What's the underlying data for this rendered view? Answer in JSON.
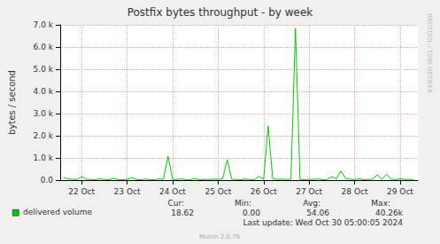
{
  "chart_data": {
    "type": "line",
    "title": "Postfix bytes throughput - by week",
    "y_label": "bytes / second",
    "x": [
      21.6,
      21.7,
      21.8,
      21.9,
      22.0,
      22.1,
      22.2,
      22.3,
      22.4,
      22.5,
      22.6,
      22.7,
      22.8,
      22.9,
      23.0,
      23.1,
      23.2,
      23.3,
      23.4,
      23.5,
      23.6,
      23.7,
      23.8,
      23.9,
      24.0,
      24.1,
      24.2,
      24.3,
      24.4,
      24.5,
      24.6,
      24.7,
      24.8,
      24.9,
      25.0,
      25.1,
      25.2,
      25.3,
      25.4,
      25.5,
      25.6,
      25.7,
      25.8,
      25.9,
      26.0,
      26.1,
      26.2,
      26.3,
      26.4,
      26.5,
      26.6,
      26.7,
      26.8,
      26.9,
      27.0,
      27.1,
      27.2,
      27.3,
      27.4,
      27.5,
      27.6,
      27.7,
      27.8,
      27.9,
      28.0,
      28.1,
      28.2,
      28.3,
      28.4,
      28.5,
      28.6,
      28.7,
      28.8,
      28.9,
      29.0,
      29.1,
      29.2,
      29.3
    ],
    "series": [
      {
        "name": "delivered volume",
        "color": "#00cc00",
        "values": [
          120,
          60,
          40,
          30,
          150,
          50,
          30,
          20,
          60,
          30,
          20,
          80,
          30,
          20,
          40,
          110,
          30,
          20,
          50,
          30,
          20,
          60,
          40,
          1080,
          40,
          30,
          60,
          20,
          30,
          70,
          20,
          40,
          30,
          50,
          30,
          60,
          920,
          40,
          30,
          20,
          50,
          30,
          20,
          160,
          40,
          2440,
          60,
          30,
          50,
          30,
          40,
          6850,
          30,
          20,
          40,
          30,
          60,
          20,
          30,
          150,
          60,
          420,
          80,
          40,
          30,
          60,
          20,
          30,
          40,
          250,
          30,
          280,
          40,
          30,
          60,
          30,
          40,
          20
        ]
      }
    ],
    "xlim": [
      21.53,
      29.39
    ],
    "xticks": [
      {
        "value": 22,
        "label": "22 Oct"
      },
      {
        "value": 23,
        "label": "23 Oct"
      },
      {
        "value": 24,
        "label": "24 Oct"
      },
      {
        "value": 25,
        "label": "25 Oct"
      },
      {
        "value": 26,
        "label": "26 Oct"
      },
      {
        "value": 27,
        "label": "27 Oct"
      },
      {
        "value": 28,
        "label": "28 Oct"
      },
      {
        "value": 29,
        "label": "29 Oct"
      }
    ],
    "ylim": [
      0,
      7000
    ],
    "yticks": [
      {
        "value": 0,
        "label": "0.0"
      },
      {
        "value": 1000,
        "label": "1.0 k"
      },
      {
        "value": 2000,
        "label": "2.0 k"
      },
      {
        "value": 3000,
        "label": "3.0 k"
      },
      {
        "value": 4000,
        "label": "4.0 k"
      },
      {
        "value": 5000,
        "label": "5.0 k"
      },
      {
        "value": 6000,
        "label": "6.0 k"
      },
      {
        "value": 7000,
        "label": "7.0 k"
      }
    ],
    "grid": true,
    "stats_labels": [
      "Cur:",
      "Min:",
      "Avg:",
      "Max:"
    ],
    "stats_values": [
      "18.62",
      "0.00",
      "54.06",
      "40.26k"
    ],
    "last_update": "Last update: Wed Oct 30 05:00:05 2024",
    "footer": "Munin 2.0.76",
    "side_text": "RRDTOOL / TOBI OETIKER"
  }
}
